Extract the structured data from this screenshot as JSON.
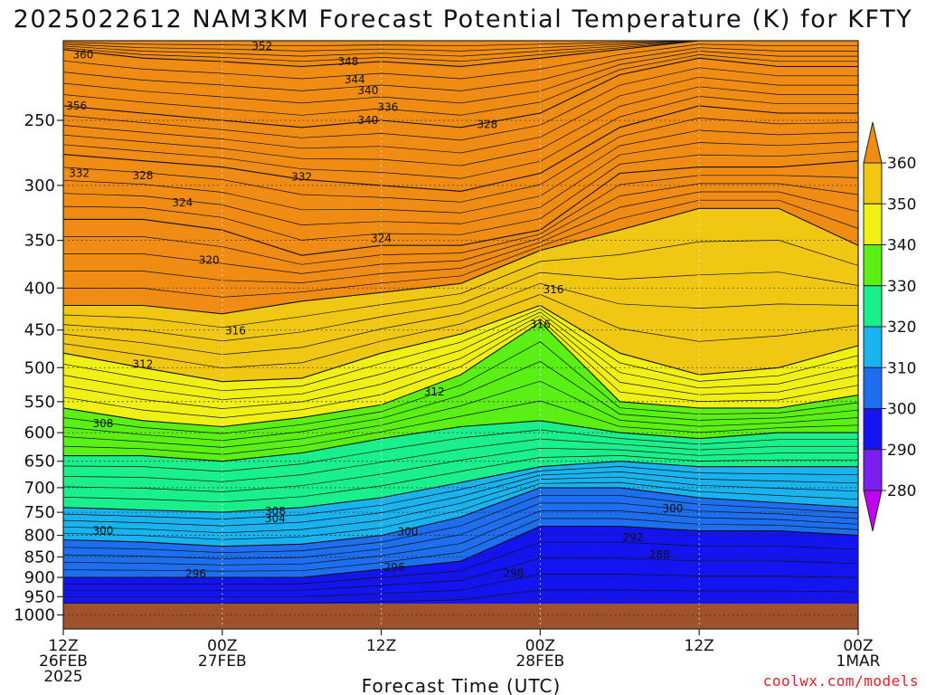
{
  "chart_data": {
    "type": "heatmap",
    "title": "2025022612 NAM3KM Forecast Potential Temperature (K) for KFTY",
    "xlabel": "Forecast Time (UTC)",
    "ylabel": "",
    "x_ticks": [
      {
        "hours": 0,
        "lines": [
          "12Z",
          "26FEB",
          "2025"
        ]
      },
      {
        "hours": 12,
        "lines": [
          "00Z",
          "27FEB"
        ]
      },
      {
        "hours": 24,
        "lines": [
          "12Z"
        ]
      },
      {
        "hours": 36,
        "lines": [
          "00Z",
          "28FEB"
        ]
      },
      {
        "hours": 48,
        "lines": [
          "12Z"
        ]
      },
      {
        "hours": 60,
        "lines": [
          "00Z",
          "1MAR"
        ]
      }
    ],
    "y_ticks": [
      "250",
      "300",
      "350",
      "400",
      "450",
      "500",
      "550",
      "600",
      "650",
      "700",
      "750",
      "800",
      "850",
      "900",
      "950",
      "1000"
    ],
    "y_range_hPa": [
      200,
      1040
    ],
    "y_scale": "log",
    "grid": true,
    "colorbar": {
      "ticks": [
        "280",
        "290",
        "300",
        "310",
        "320",
        "330",
        "340",
        "350",
        "360"
      ],
      "colors": [
        "#c000f0",
        "#7a1ff0",
        "#1414f0",
        "#1e6ef0",
        "#19b4f0",
        "#19f08c",
        "#5af014",
        "#f0f014",
        "#f0c814",
        "#f08c14"
      ]
    },
    "fill_levels": [
      280,
      290,
      300,
      310,
      320,
      330,
      340,
      350,
      360
    ],
    "contour_labels": [
      "360",
      "352",
      "348",
      "344",
      "340",
      "356",
      "336",
      "340",
      "328",
      "332",
      "328",
      "332",
      "324",
      "324",
      "320",
      "316",
      "316",
      "316",
      "312",
      "312",
      "308",
      "308",
      "304",
      "300",
      "300",
      "300",
      "298",
      "296",
      "296",
      "292",
      "288"
    ],
    "profiles": [
      {
        "hour": 0,
        "levels_hPa": [
          985,
          900,
          810,
          740,
          640,
          560,
          480,
          420,
          330,
          275,
          240,
          205,
          200
        ]
      },
      {
        "hour": 6,
        "levels_hPa": [
          985,
          900,
          815,
          745,
          640,
          580,
          500,
          420,
          330,
          280,
          245,
          210,
          200
        ]
      },
      {
        "hour": 12,
        "levels_hPa": [
          985,
          900,
          825,
          750,
          650,
          590,
          520,
          430,
          340,
          285,
          250,
          212,
          200
        ]
      },
      {
        "hour": 18,
        "levels_hPa": [
          985,
          900,
          820,
          740,
          635,
          575,
          515,
          415,
          365,
          295,
          255,
          215,
          200
        ]
      },
      {
        "hour": 24,
        "levels_hPa": [
          985,
          880,
          800,
          720,
          610,
          555,
          480,
          405,
          355,
          300,
          250,
          212,
          200
        ]
      },
      {
        "hour": 30,
        "levels_hPa": [
          985,
          860,
          760,
          690,
          590,
          510,
          455,
          395,
          355,
          305,
          255,
          215,
          200
        ]
      },
      {
        "hour": 36,
        "levels_hPa": [
          975,
          780,
          700,
          660,
          580,
          440,
          420,
          360,
          340,
          290,
          245,
          210,
          200
        ]
      },
      {
        "hour": 42,
        "levels_hPa": [
          975,
          780,
          700,
          650,
          600,
          550,
          480,
          340,
          290,
          255,
          220,
          205,
          200
        ]
      },
      {
        "hour": 48,
        "levels_hPa": [
          975,
          790,
          720,
          660,
          610,
          560,
          510,
          320,
          285,
          240,
          210,
          200,
          200
        ]
      },
      {
        "hour": 54,
        "levels_hPa": [
          975,
          790,
          730,
          660,
          600,
          560,
          500,
          320,
          285,
          245,
          215,
          200,
          200
        ]
      },
      {
        "hour": 60,
        "levels_hPa": [
          975,
          800,
          740,
          660,
          600,
          540,
          470,
          355,
          280,
          245,
          215,
          200,
          200
        ]
      }
    ],
    "ground_fill": "#a0522d"
  },
  "credit": "coolwx.com/models"
}
